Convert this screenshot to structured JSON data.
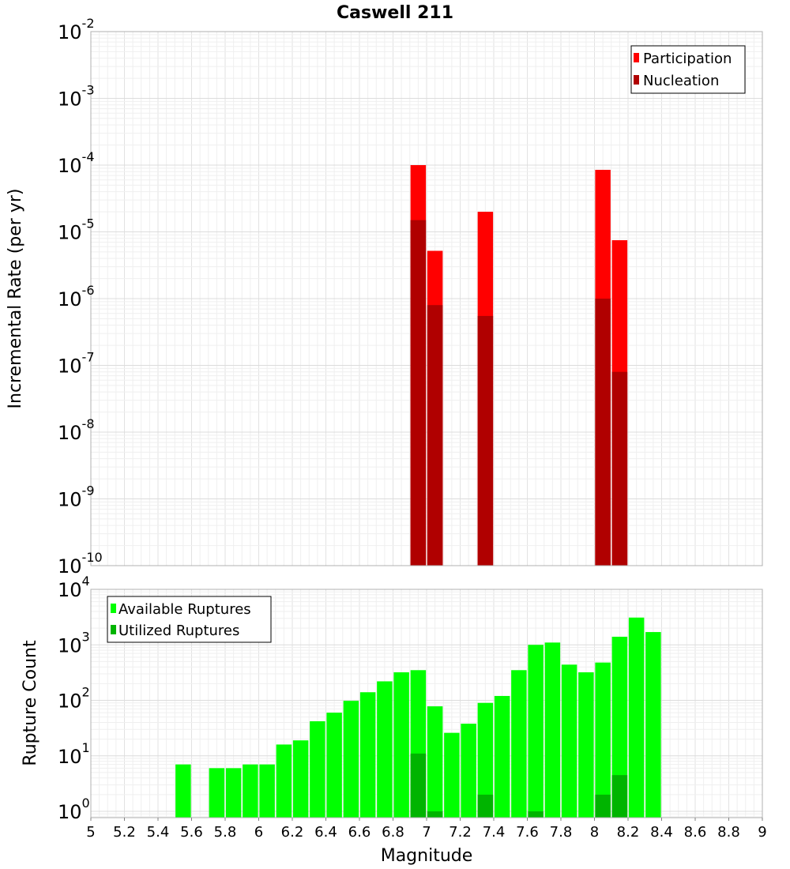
{
  "chart_data": [
    {
      "type": "bar",
      "title": "Caswell 211",
      "ylabel": "Incremental Rate (per yr)",
      "xlabel": "",
      "xlim": [
        5,
        9
      ],
      "yscale": "log",
      "ylim": [
        1e-10,
        0.01
      ],
      "ytick_exponents": [
        "-2",
        "-3",
        "-4",
        "-5",
        "-6",
        "-7",
        "-8",
        "-9",
        "-10"
      ],
      "ytick_base": "10",
      "grid": true,
      "legend_position": "top-right",
      "series": [
        {
          "name": "Participation",
          "color": "#ff0000",
          "x": [
            6.95,
            7.05,
            7.35,
            8.05,
            8.15
          ],
          "values": [
            0.0001,
            5.2e-06,
            2e-05,
            8.5e-05,
            7.5e-06
          ]
        },
        {
          "name": "Nucleation",
          "color": "#b00000",
          "x": [
            6.95,
            7.05,
            7.35,
            8.05,
            8.15
          ],
          "values": [
            1.5e-05,
            8e-07,
            5.5e-07,
            1e-06,
            8e-08
          ]
        }
      ]
    },
    {
      "type": "bar",
      "title": "",
      "ylabel": "Rupture Count",
      "xlabel": "Magnitude",
      "xlim": [
        5,
        9
      ],
      "xticks": [
        "5",
        "5.2",
        "5.4",
        "5.6",
        "5.8",
        "6",
        "6.2",
        "6.4",
        "6.6",
        "6.8",
        "7",
        "7.2",
        "7.4",
        "7.6",
        "7.8",
        "8",
        "8.2",
        "8.4",
        "8.6",
        "8.8",
        "9"
      ],
      "yscale": "log",
      "ylim": [
        0.77,
        10000
      ],
      "ytick_exponents": [
        "4",
        "3",
        "2",
        "1",
        "0"
      ],
      "ytick_base": "10",
      "grid": true,
      "legend_position": "top-left",
      "series": [
        {
          "name": "Available Ruptures",
          "color": "#00ff00",
          "x": [
            5.55,
            5.75,
            5.85,
            5.95,
            6.05,
            6.15,
            6.25,
            6.35,
            6.45,
            6.55,
            6.65,
            6.75,
            6.85,
            6.95,
            7.05,
            7.15,
            7.25,
            7.35,
            7.45,
            7.55,
            7.65,
            7.75,
            7.85,
            7.95,
            8.05,
            8.15,
            8.25,
            8.35
          ],
          "values": [
            7,
            6,
            6,
            7,
            7,
            16,
            19,
            42,
            60,
            98,
            140,
            220,
            320,
            350,
            78,
            26,
            38,
            90,
            120,
            350,
            1000,
            1100,
            440,
            320,
            480,
            1400,
            3100,
            1700
          ]
        },
        {
          "name": "Utilized Ruptures",
          "color": "#00b400",
          "x": [
            6.95,
            7.05,
            7.35,
            7.65,
            8.05,
            8.15
          ],
          "values": [
            11,
            1,
            2,
            1,
            2,
            4.5
          ]
        }
      ]
    }
  ]
}
